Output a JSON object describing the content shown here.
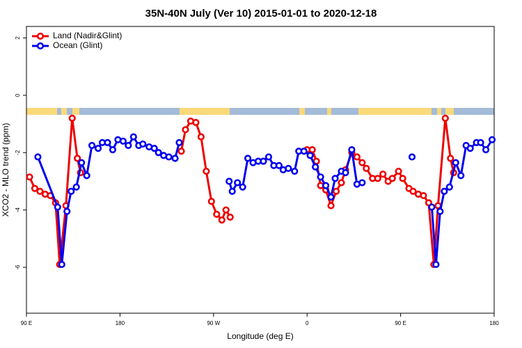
{
  "chart_data": {
    "type": "line",
    "title": "35N-40N July (Ver 10)   2015-01-01 to 2020-12-18",
    "x_label": "Longitude (deg E)",
    "y_label": "XCO2 - MLO trend (ppm)",
    "xlim": [
      90,
      540
    ],
    "xticks": [
      {
        "value": 90,
        "label": "90 E"
      },
      180,
      {
        "value": 270,
        "label": "90 W"
      },
      {
        "value": 360,
        "label": "0"
      },
      {
        "value": 450,
        "label": "90 E"
      },
      {
        "value": 540,
        "label": "180"
      }
    ],
    "ylim": [
      -7.6,
      2.4
    ],
    "yticks": [
      2,
      0,
      -2,
      -4,
      -6
    ],
    "legend": "top-left",
    "series": [
      {
        "name": "Land (Nadir&Glint)",
        "color": "#ee0000",
        "x": [
          93,
          98,
          103,
          108,
          113,
          118,
          122,
          128,
          134,
          139,
          142,
          190,
          239,
          243,
          248,
          253,
          258,
          263,
          268,
          273,
          278,
          282,
          286,
          320,
          360,
          365,
          369,
          373,
          378,
          383,
          388,
          393,
          397,
          403,
          408,
          413,
          417,
          423,
          428,
          433,
          438,
          442,
          448,
          452,
          458,
          462,
          467,
          472,
          477,
          482,
          486,
          493,
          498,
          501
        ],
        "values": [
          -2.85,
          -3.25,
          -3.35,
          -3.45,
          -3.5,
          -3.75,
          -5.9,
          -3.85,
          -0.8,
          -2.2,
          -2.7,
          null,
          -1.95,
          -1.2,
          -0.9,
          -0.95,
          -1.45,
          -2.65,
          -3.7,
          -4.15,
          -4.35,
          -4.0,
          -4.25,
          null,
          -1.9,
          -1.9,
          -2.3,
          -3.15,
          -3.3,
          -3.85,
          -3.35,
          -3.05,
          -2.6,
          -2.0,
          -2.15,
          -2.35,
          -2.55,
          -2.9,
          -2.9,
          -2.75,
          -3.0,
          -2.9,
          -2.65,
          -2.9,
          -3.25,
          -3.35,
          -3.45,
          -3.5,
          -3.75,
          -5.9,
          -3.85,
          -0.8,
          -2.2,
          -2.7
        ]
      },
      {
        "name": "Ocean (Glint)",
        "color": "#0000ee",
        "x": [
          101,
          120,
          124,
          129,
          133,
          138,
          143,
          148,
          153,
          159,
          163,
          168,
          173,
          178,
          183,
          188,
          193,
          198,
          202,
          208,
          213,
          217,
          222,
          227,
          233,
          237,
          260,
          285,
          288,
          293,
          298,
          303,
          308,
          313,
          318,
          323,
          328,
          333,
          337,
          342,
          348,
          352,
          357,
          363,
          368,
          373,
          378,
          383,
          387,
          393,
          397,
          403,
          408,
          413,
          440,
          461,
          470,
          480,
          484,
          488,
          492,
          497,
          503,
          508,
          513,
          517,
          523,
          527,
          532,
          538
        ],
        "values": [
          -2.15,
          -3.9,
          -5.9,
          -4.05,
          -3.35,
          -3.2,
          -2.35,
          -2.8,
          -1.75,
          -1.85,
          -1.65,
          -1.65,
          -1.9,
          -1.55,
          -1.6,
          -1.75,
          -1.45,
          -1.75,
          -1.7,
          -1.8,
          -1.85,
          -2.0,
          -2.1,
          -2.15,
          -2.2,
          -1.65,
          null,
          -3.0,
          -3.35,
          -3.05,
          -3.2,
          -2.2,
          -2.35,
          -2.3,
          -2.3,
          -2.15,
          -2.45,
          -2.45,
          -2.6,
          -2.55,
          -2.65,
          -1.95,
          -1.95,
          -2.1,
          -2.5,
          -2.85,
          -3.15,
          -3.55,
          -2.9,
          -2.65,
          -2.7,
          -1.9,
          -3.1,
          -3.05,
          null,
          -2.15,
          null,
          -3.9,
          -5.9,
          -4.05,
          -3.35,
          -3.2,
          -2.35,
          -2.8,
          -1.75,
          -1.85,
          -1.65,
          -1.65,
          -1.9,
          -1.55
        ]
      }
    ]
  }
}
